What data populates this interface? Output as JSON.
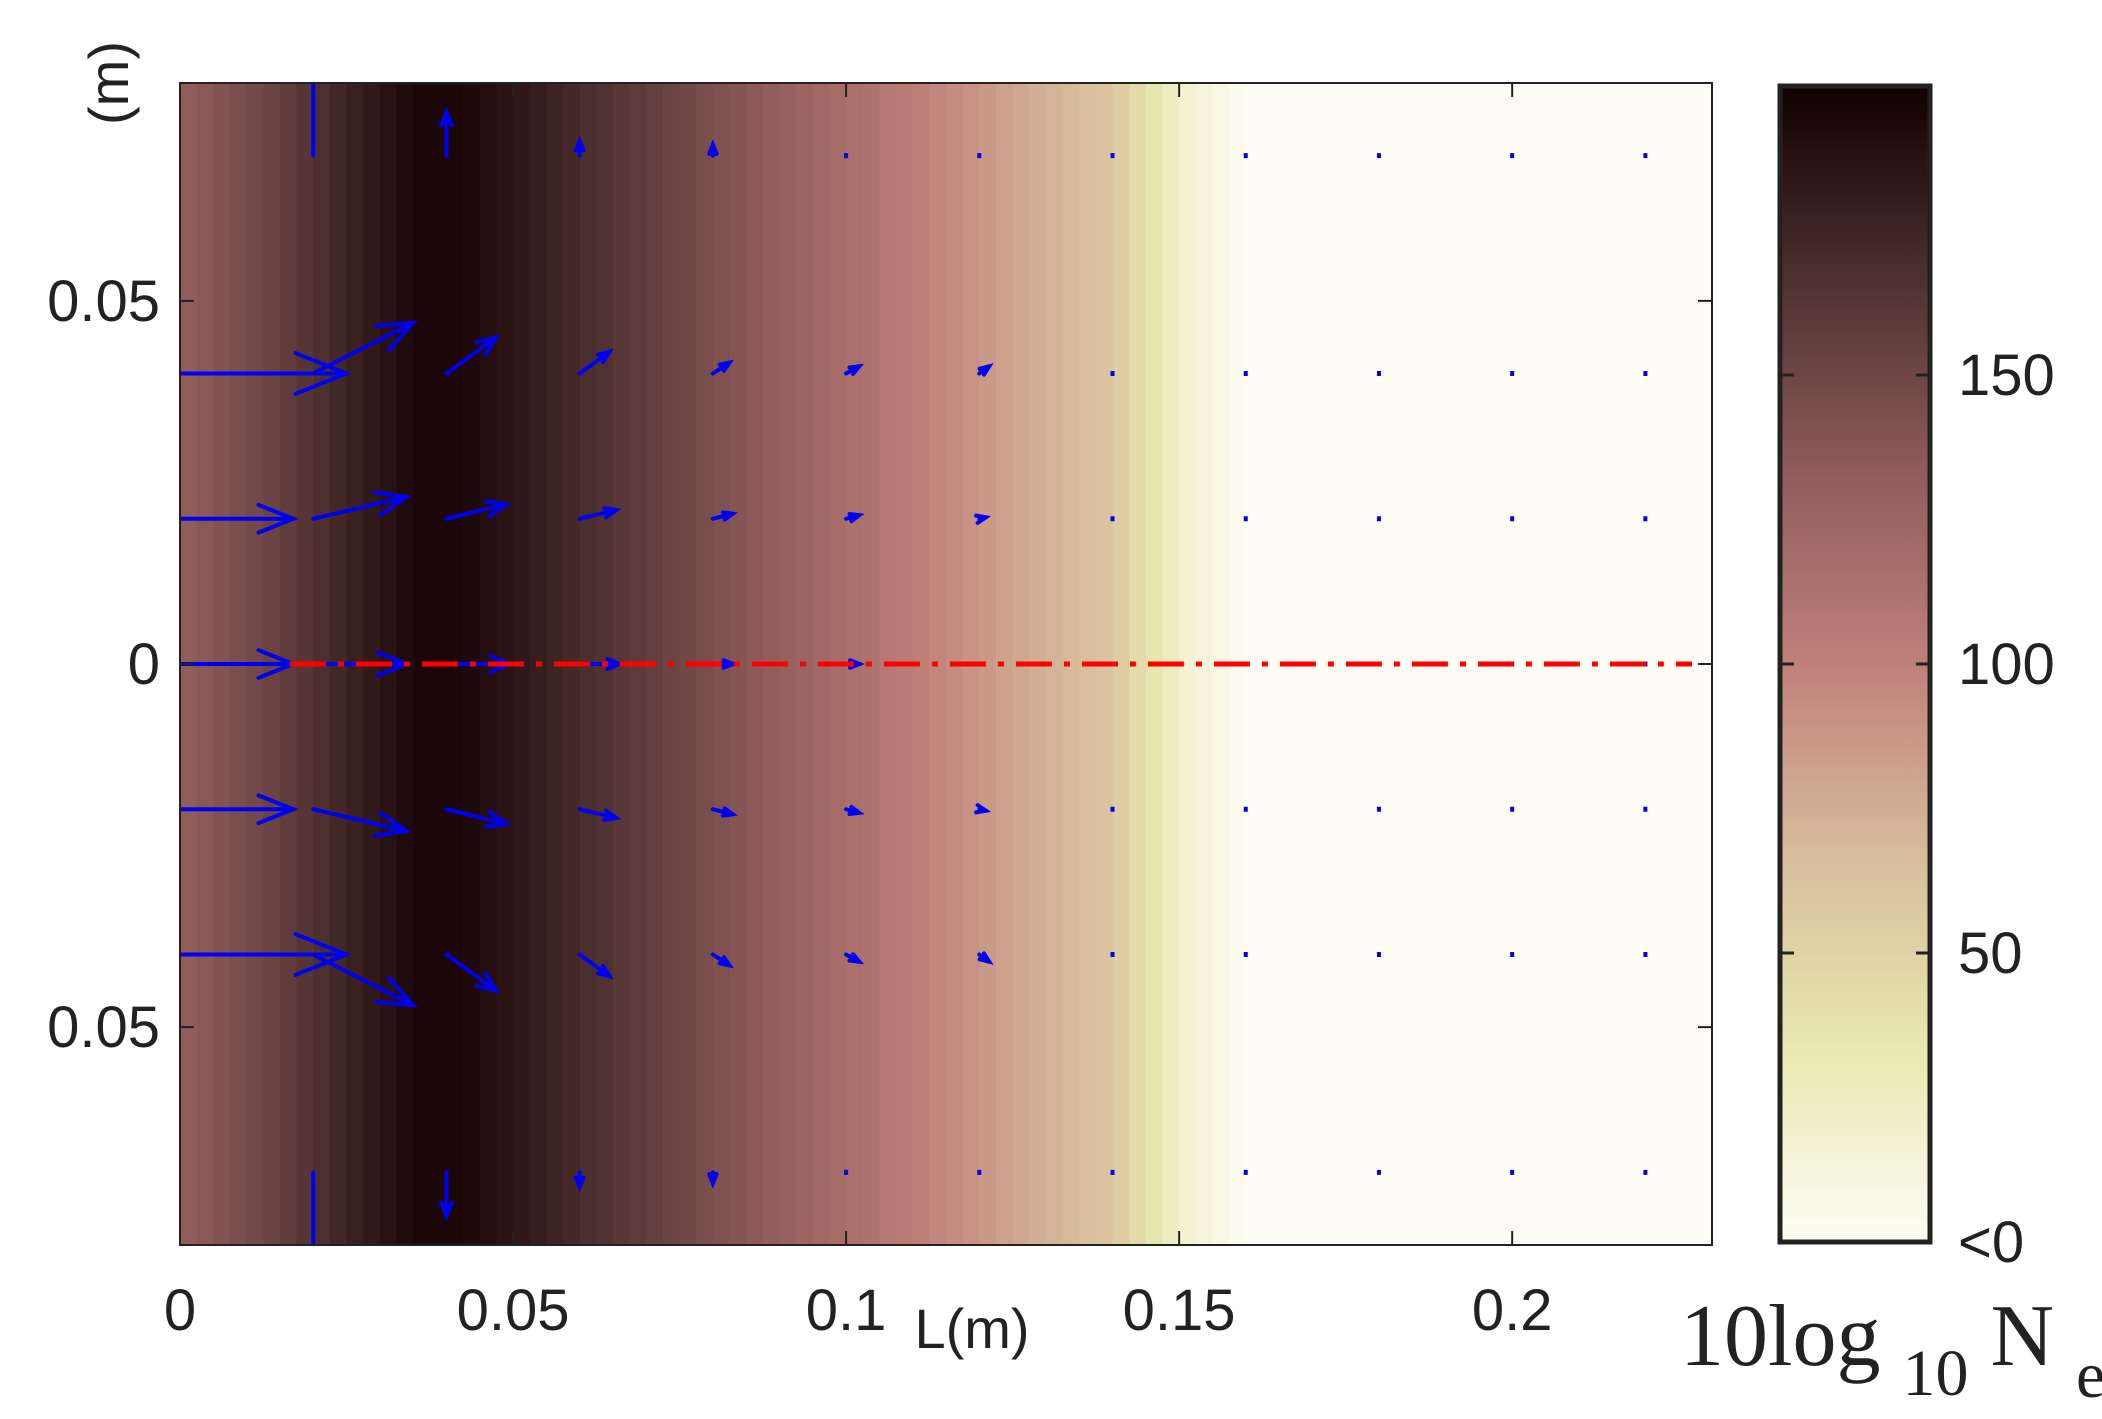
{
  "chart_data": {
    "type": "heatmap",
    "title": "",
    "xlabel": "L(m)",
    "ylabel": "(m)",
    "xlim": [
      0,
      0.23
    ],
    "ylim": [
      -0.08,
      0.08
    ],
    "x_tick_labels": [
      {
        "value": 0,
        "label": "0"
      },
      {
        "value": 0.05,
        "label": "0.05"
      },
      {
        "value": 0.1,
        "label": "0.1"
      },
      {
        "value": 0.15,
        "label": "0.15"
      },
      {
        "value": 0.2,
        "label": "0.2"
      }
    ],
    "y_tick_labels": [
      {
        "value": 0.05,
        "label": "0.05"
      },
      {
        "value": 0,
        "label": "0"
      },
      {
        "value": -0.05,
        "label": "0.05"
      }
    ],
    "heatmap": {
      "description_axis": "x",
      "x": [
        0,
        0.0125,
        0.025,
        0.035,
        0.0425,
        0.05,
        0.06,
        0.075,
        0.09,
        0.105,
        0.115,
        0.125,
        0.14,
        0.15,
        0.16,
        0.23
      ],
      "value": [
        130,
        150,
        175,
        195,
        195,
        185,
        170,
        150,
        130,
        110,
        95,
        80,
        60,
        20,
        0,
        0
      ]
    },
    "colorbar": {
      "label_main": "10log",
      "label_sub": "10",
      "label_var": "N",
      "label_var_sub": "e",
      "range": [
        0,
        200
      ],
      "ticks": [
        {
          "value": 150,
          "label": "150"
        },
        {
          "value": 100,
          "label": "100"
        },
        {
          "value": 50,
          "label": "50"
        },
        {
          "value": 0,
          "label": "<0"
        }
      ],
      "colors": [
        "#fdfdf5",
        "#e9e8b0",
        "#d8bd9c",
        "#c0807a",
        "#8f5c5a",
        "#4e3030",
        "#120000"
      ]
    },
    "quiver": {
      "color": "#0000ee",
      "vectors": [
        {
          "x": 0.02,
          "y": 0.07,
          "u": 0,
          "v": 0.015
        },
        {
          "x": 0.04,
          "y": 0.07,
          "u": 0,
          "v": 0.006
        },
        {
          "x": 0.06,
          "y": 0.07,
          "u": 0,
          "v": 0.002
        },
        {
          "x": 0.08,
          "y": 0.07,
          "u": 0,
          "v": 0.0015
        },
        {
          "x": 0.02,
          "y": -0.07,
          "u": 0,
          "v": -0.015
        },
        {
          "x": 0.04,
          "y": -0.07,
          "u": 0,
          "v": -0.006
        },
        {
          "x": 0.06,
          "y": -0.07,
          "u": 0,
          "v": -0.002
        },
        {
          "x": 0.08,
          "y": -0.07,
          "u": 0,
          "v": -0.0015
        },
        {
          "x": 0,
          "y": 0.04,
          "u": 0.025,
          "v": 0
        },
        {
          "x": 0.02,
          "y": 0.04,
          "u": 0.015,
          "v": 0.007
        },
        {
          "x": 0.04,
          "y": 0.04,
          "u": 0.0075,
          "v": 0.005
        },
        {
          "x": 0.06,
          "y": 0.04,
          "u": 0.0045,
          "v": 0.003
        },
        {
          "x": 0.08,
          "y": 0.04,
          "u": 0.0025,
          "v": 0.0015
        },
        {
          "x": 0.1,
          "y": 0.04,
          "u": 0.002,
          "v": 0.001
        },
        {
          "x": 0.12,
          "y": 0.04,
          "u": 0.0015,
          "v": 0.001
        },
        {
          "x": 0.0,
          "y": 0.02,
          "u": 0.017,
          "v": 0
        },
        {
          "x": 0.02,
          "y": 0.02,
          "u": 0.014,
          "v": 0.003
        },
        {
          "x": 0.04,
          "y": 0.02,
          "u": 0.009,
          "v": 0.002
        },
        {
          "x": 0.06,
          "y": 0.02,
          "u": 0.0055,
          "v": 0.0012
        },
        {
          "x": 0.08,
          "y": 0.02,
          "u": 0.003,
          "v": 0.0007
        },
        {
          "x": 0.1,
          "y": 0.02,
          "u": 0.002,
          "v": 0.0005
        },
        {
          "x": 0.12,
          "y": 0.02,
          "u": 0.001,
          "v": 0.0002
        },
        {
          "x": 0,
          "y": 0,
          "u": 0.017,
          "v": 0
        },
        {
          "x": 0.02,
          "y": 0,
          "u": 0.014,
          "v": 0
        },
        {
          "x": 0.04,
          "y": 0,
          "u": 0.0095,
          "v": 0
        },
        {
          "x": 0.06,
          "y": 0,
          "u": 0.006,
          "v": 0
        },
        {
          "x": 0.08,
          "y": 0,
          "u": 0.003,
          "v": 0
        },
        {
          "x": 0.1,
          "y": 0,
          "u": 0.002,
          "v": 0
        },
        {
          "x": 0,
          "y": -0.02,
          "u": 0.017,
          "v": 0
        },
        {
          "x": 0.02,
          "y": -0.02,
          "u": 0.014,
          "v": -0.003
        },
        {
          "x": 0.04,
          "y": -0.02,
          "u": 0.009,
          "v": -0.002
        },
        {
          "x": 0.06,
          "y": -0.02,
          "u": 0.0055,
          "v": -0.0012
        },
        {
          "x": 0.08,
          "y": -0.02,
          "u": 0.003,
          "v": -0.0007
        },
        {
          "x": 0.1,
          "y": -0.02,
          "u": 0.002,
          "v": -0.0005
        },
        {
          "x": 0.12,
          "y": -0.02,
          "u": 0.001,
          "v": -0.0002
        },
        {
          "x": 0,
          "y": -0.04,
          "u": 0.025,
          "v": 0
        },
        {
          "x": 0.02,
          "y": -0.04,
          "u": 0.015,
          "v": -0.007
        },
        {
          "x": 0.04,
          "y": -0.04,
          "u": 0.0075,
          "v": -0.005
        },
        {
          "x": 0.06,
          "y": -0.04,
          "u": 0.0045,
          "v": -0.003
        },
        {
          "x": 0.08,
          "y": -0.04,
          "u": 0.0025,
          "v": -0.0015
        },
        {
          "x": 0.1,
          "y": -0.04,
          "u": 0.002,
          "v": -0.001
        },
        {
          "x": 0.12,
          "y": -0.04,
          "u": 0.0015,
          "v": -0.001
        }
      ],
      "dots": {
        "x": [
          0.1,
          0.12,
          0.14,
          0.16,
          0.18,
          0.2,
          0.22
        ],
        "y": [
          0.07,
          0.04,
          0.02,
          0,
          -0.02,
          -0.04,
          -0.07
        ]
      }
    },
    "centerline": {
      "y": 0,
      "x_start": 0.0165,
      "x_end": 0.227,
      "color": "#ff0000",
      "style": "dash-dot"
    }
  }
}
